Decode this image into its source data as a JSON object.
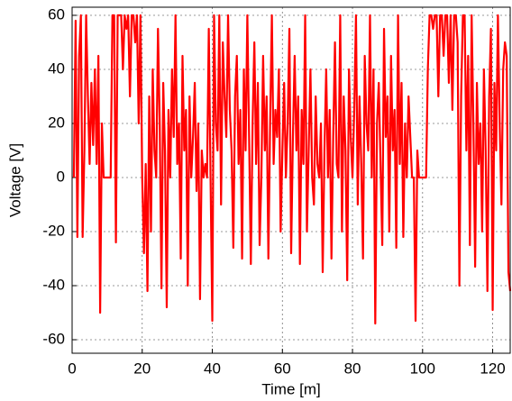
{
  "chart_data": {
    "type": "line",
    "xlabel": "Time [m]",
    "ylabel": "Voltage [V]",
    "xlim": [
      0,
      125
    ],
    "ylim": [
      -65,
      63
    ],
    "xticks": [
      0,
      20,
      40,
      60,
      80,
      100,
      120
    ],
    "yticks": [
      -60,
      -40,
      -20,
      0,
      20,
      40,
      60
    ],
    "grid": true,
    "x": [
      0.5,
      1,
      1.5,
      2,
      2.5,
      3,
      3.5,
      4,
      4.5,
      5,
      5.5,
      6,
      6.5,
      7,
      7.5,
      8,
      8.5,
      9,
      9.5,
      10,
      10.5,
      11,
      11.5,
      12,
      12.5,
      13,
      13.5,
      14,
      14.5,
      15,
      15.5,
      16,
      16.5,
      17,
      17.5,
      18,
      18.5,
      19,
      19.5,
      20,
      20.5,
      21,
      21.5,
      22,
      22.5,
      23,
      23.5,
      24,
      24.5,
      25,
      25.5,
      26,
      26.5,
      27,
      27.5,
      28,
      28.5,
      29,
      29.5,
      30,
      30.5,
      31,
      31.5,
      32,
      32.5,
      33,
      33.5,
      34,
      34.5,
      35,
      35.5,
      36,
      36.5,
      37,
      37.5,
      38,
      38.5,
      39,
      39.5,
      40,
      40.5,
      41,
      41.5,
      42,
      42.5,
      43,
      43.5,
      44,
      44.5,
      45,
      45.5,
      46,
      46.5,
      47,
      47.5,
      48,
      48.5,
      49,
      49.5,
      50,
      50.5,
      51,
      51.5,
      52,
      52.5,
      53,
      53.5,
      54,
      54.5,
      55,
      55.5,
      56,
      56.5,
      57,
      57.5,
      58,
      58.5,
      59,
      59.5,
      60,
      60.5,
      61,
      61.5,
      62,
      62.5,
      63,
      63.5,
      64,
      64.5,
      65,
      65.5,
      66,
      66.5,
      67,
      67.5,
      68,
      68.5,
      69,
      69.5,
      70,
      70.5,
      71,
      71.5,
      72,
      72.5,
      73,
      73.5,
      74,
      74.5,
      75,
      75.5,
      76,
      76.5,
      77,
      77.5,
      78,
      78.5,
      79,
      79.5,
      80,
      80.5,
      81,
      81.5,
      82,
      82.5,
      83,
      83.5,
      84,
      84.5,
      85,
      85.5,
      86,
      86.5,
      87,
      87.5,
      88,
      88.5,
      89,
      89.5,
      90,
      90.5,
      91,
      91.5,
      92,
      92.5,
      93,
      93.5,
      94,
      94.5,
      95,
      95.5,
      96,
      96.5,
      97,
      97.5,
      98,
      98.5,
      99,
      99.5,
      100,
      100.5,
      101,
      101.5,
      102,
      102.5,
      103,
      103.5,
      104,
      104.5,
      105,
      105.5,
      106,
      106.5,
      107,
      107.5,
      108,
      108.5,
      109,
      109.5,
      110,
      110.5,
      111,
      111.5,
      112,
      112.5,
      113,
      113.5,
      114,
      114.5,
      115,
      115.5,
      116,
      116.5,
      117,
      117.5,
      118,
      118.5,
      119,
      119.5,
      120,
      120.5,
      121,
      121.5,
      122,
      122.5,
      123,
      123.5,
      124,
      124.5,
      125
    ],
    "series": [
      {
        "color": "#ff0000",
        "values": [
          0,
          58,
          -22,
          45,
          60,
          -22,
          10,
          60,
          30,
          5,
          35,
          12,
          40,
          5,
          45,
          -50,
          20,
          0,
          0,
          0,
          0,
          0,
          60,
          60,
          -24,
          60,
          60,
          60,
          40,
          60,
          55,
          60,
          30,
          60,
          60,
          50,
          60,
          20,
          60,
          0,
          -28,
          5,
          -42,
          30,
          -20,
          40,
          10,
          0,
          55,
          20,
          -41,
          35,
          10,
          -48,
          25,
          0,
          40,
          15,
          60,
          5,
          20,
          -30,
          45,
          10,
          25,
          -40,
          30,
          0,
          15,
          35,
          -5,
          20,
          -45,
          10,
          0,
          5,
          0,
          55,
          0,
          -53,
          60,
          20,
          10,
          60,
          -10,
          50,
          30,
          15,
          60,
          25,
          10,
          -26,
          30,
          45,
          5,
          25,
          -30,
          40,
          10,
          60,
          15,
          -32,
          20,
          50,
          5,
          35,
          -25,
          0,
          45,
          10,
          30,
          -30,
          20,
          60,
          5,
          25,
          15,
          40,
          -20,
          10,
          35,
          0,
          20,
          55,
          -28,
          15,
          45,
          10,
          30,
          -32,
          25,
          5,
          60,
          -20,
          10,
          40,
          0,
          -10,
          30,
          5,
          0,
          20,
          -35,
          10,
          40,
          0,
          25,
          -30,
          15,
          50,
          5,
          0,
          60,
          -20,
          30,
          10,
          -38,
          40,
          15,
          0,
          25,
          60,
          -10,
          30,
          5,
          -30,
          45,
          20,
          10,
          60,
          0,
          40,
          -54,
          20,
          35,
          5,
          -25,
          55,
          15,
          30,
          -20,
          45,
          10,
          25,
          -26,
          60,
          5,
          35,
          -22,
          20,
          0,
          30,
          15,
          0,
          0,
          -53,
          10,
          0,
          0,
          0,
          0,
          0,
          40,
          60,
          60,
          55,
          60,
          60,
          30,
          60,
          60,
          45,
          60,
          60,
          35,
          60,
          25,
          60,
          60,
          50,
          -40,
          30,
          60,
          60,
          10,
          45,
          -25,
          60,
          20,
          -33,
          35,
          5,
          20,
          -20,
          40,
          10,
          -42,
          30,
          55,
          -49,
          35,
          10,
          60,
          20,
          -10,
          40,
          50,
          45,
          -35,
          -42
        ]
      }
    ]
  }
}
